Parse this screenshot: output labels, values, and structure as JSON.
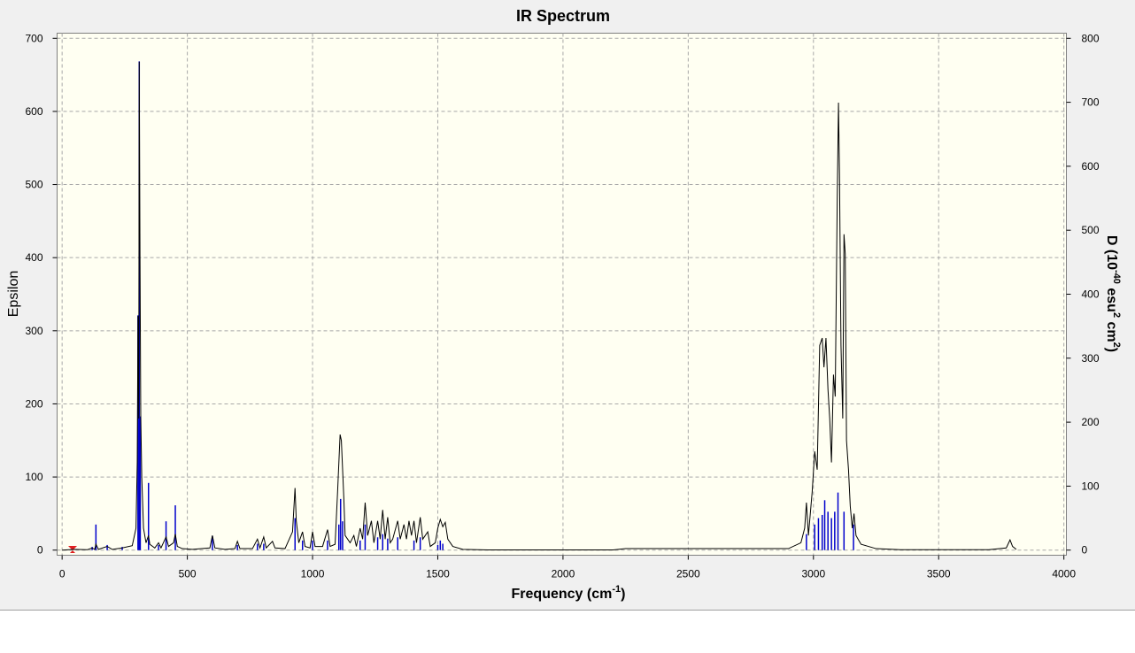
{
  "chart_data": {
    "type": "line",
    "title": "IR Spectrum",
    "x_label_parts": [
      "Frequency (cm",
      "-1",
      ")"
    ],
    "y_label": "Epsilon",
    "y2_label_parts": [
      "D (10",
      "-40",
      " esu",
      "2",
      " cm",
      "2",
      ")"
    ],
    "xlim": [
      -20,
      4010
    ],
    "xticks": [
      0,
      500,
      1000,
      1500,
      2000,
      2500,
      3000,
      3500,
      4000
    ],
    "ylim": [
      -7,
      707
    ],
    "yticks": [
      0,
      100,
      200,
      300,
      400,
      500,
      600,
      700
    ],
    "y2lim": [
      -8,
      808
    ],
    "y2ticks": [
      0,
      100,
      200,
      300,
      400,
      500,
      600,
      700,
      800
    ],
    "grid": true,
    "series": [
      {
        "type": "stick",
        "axis": "y2",
        "color": "#0000cc",
        "x": [
          120,
          135,
          180,
          240,
          303,
          308,
          312,
          345,
          385,
          415,
          452,
          600,
          700,
          780,
          805,
          930,
          960,
          1000,
          1060,
          1105,
          1112,
          1120,
          1190,
          1210,
          1260,
          1280,
          1300,
          1340,
          1405,
          1430,
          1500,
          1510,
          1520,
          2972,
          3005,
          3020,
          3035,
          3045,
          3058,
          3072,
          3085,
          3098,
          3122,
          3160
        ],
        "values": [
          5,
          40,
          8,
          5,
          367,
          764,
          209,
          105,
          8,
          45,
          70,
          22,
          8,
          10,
          10,
          50,
          15,
          15,
          15,
          40,
          80,
          45,
          15,
          40,
          20,
          25,
          18,
          20,
          15,
          20,
          8,
          15,
          10,
          25,
          40,
          50,
          55,
          78,
          60,
          50,
          60,
          90,
          60,
          40
        ]
      },
      {
        "type": "line",
        "color": "#000000",
        "x": [
          0,
          50,
          100,
          120,
          130,
          135,
          145,
          180,
          200,
          240,
          280,
          295,
          300,
          303,
          306,
          308,
          311,
          314,
          318,
          325,
          335,
          345,
          350,
          370,
          385,
          395,
          415,
          425,
          445,
          452,
          460,
          480,
          520,
          590,
          600,
          610,
          650,
          690,
          700,
          710,
          760,
          780,
          790,
          805,
          815,
          840,
          850,
          890,
          920,
          930,
          935,
          945,
          960,
          970,
          990,
          1000,
          1010,
          1040,
          1060,
          1070,
          1090,
          1100,
          1110,
          1115,
          1125,
          1130,
          1150,
          1165,
          1175,
          1190,
          1200,
          1210,
          1220,
          1235,
          1245,
          1260,
          1270,
          1280,
          1290,
          1300,
          1310,
          1320,
          1340,
          1350,
          1365,
          1375,
          1385,
          1395,
          1405,
          1415,
          1430,
          1440,
          1460,
          1470,
          1490,
          1500,
          1510,
          1520,
          1530,
          1540,
          1560,
          1600,
          1700,
          2200,
          2250,
          2900,
          2950,
          2965,
          2972,
          2980,
          2995,
          3005,
          3015,
          3025,
          3035,
          3042,
          3050,
          3058,
          3065,
          3072,
          3080,
          3087,
          3095,
          3100,
          3104,
          3110,
          3117,
          3122,
          3127,
          3132,
          3140,
          3147,
          3155,
          3162,
          3170,
          3190,
          3250,
          3350,
          3700,
          3770,
          3785,
          3795,
          3810
        ],
        "values": [
          0,
          1,
          0.5,
          3,
          1,
          8,
          1,
          5,
          1,
          3,
          6,
          30,
          120,
          320,
          180,
          668,
          400,
          185,
          100,
          30,
          10,
          20,
          8,
          3,
          10,
          3,
          18,
          5,
          10,
          22,
          5,
          2,
          1,
          3,
          20,
          3,
          1,
          2,
          12,
          2,
          2,
          15,
          3,
          18,
          3,
          12,
          3,
          2,
          25,
          85,
          40,
          10,
          25,
          5,
          3,
          25,
          5,
          5,
          28,
          5,
          8,
          80,
          158,
          150,
          70,
          20,
          10,
          20,
          5,
          30,
          15,
          65,
          20,
          40,
          10,
          40,
          15,
          55,
          15,
          45,
          10,
          15,
          40,
          15,
          35,
          15,
          40,
          20,
          40,
          10,
          45,
          15,
          25,
          5,
          10,
          30,
          42,
          32,
          38,
          15,
          5,
          1,
          0.3,
          0.3,
          2,
          2,
          10,
          30,
          65,
          20,
          80,
          135,
          110,
          280,
          290,
          250,
          290,
          220,
          180,
          120,
          240,
          210,
          480,
          612,
          515,
          280,
          180,
          432,
          405,
          150,
          110,
          60,
          30,
          50,
          20,
          8,
          2,
          0.5,
          0.5,
          3,
          14,
          5,
          1
        ]
      }
    ]
  }
}
